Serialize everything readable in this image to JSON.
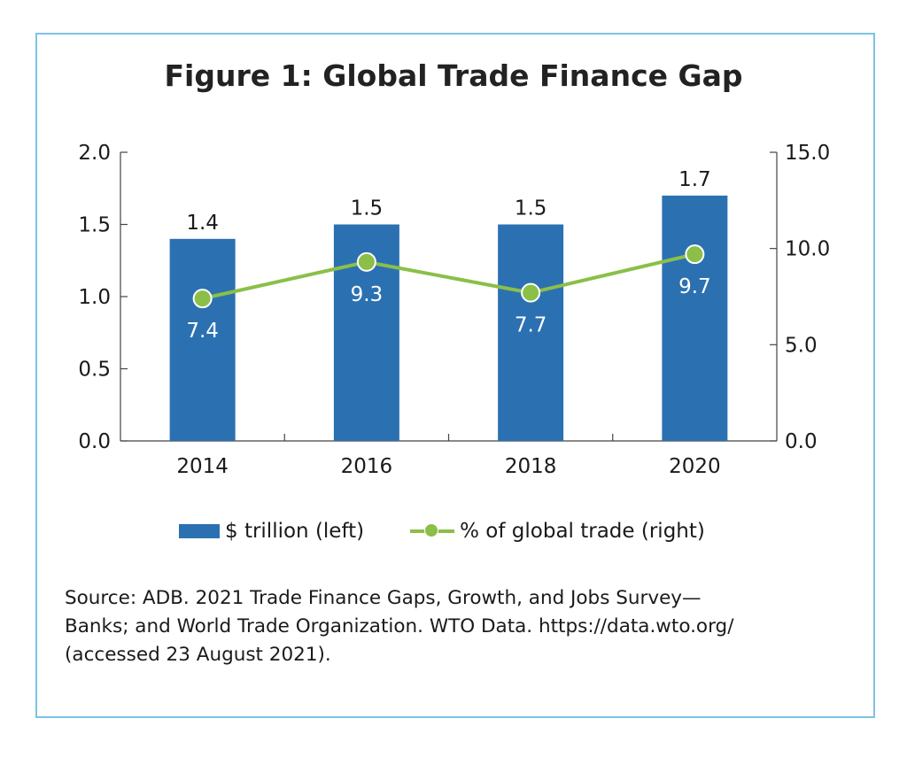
{
  "title": "Figure 1: Global Trade Finance Gap",
  "chart_data": {
    "type": "bar",
    "categories": [
      "2014",
      "2016",
      "2018",
      "2020"
    ],
    "series": [
      {
        "name": "$ trillion (left)",
        "type": "bar",
        "axis": "left",
        "values": [
          1.4,
          1.5,
          1.5,
          1.7
        ],
        "color": "#2b71b1"
      },
      {
        "name": "% of global trade (right)",
        "type": "line",
        "axis": "right",
        "values": [
          7.4,
          9.3,
          7.7,
          9.7
        ],
        "color": "#8bbf48"
      }
    ],
    "left_axis": {
      "min": 0,
      "max": 2.0,
      "ticks": [
        "0.0",
        "0.5",
        "1.0",
        "1.5",
        "2.0"
      ]
    },
    "right_axis": {
      "min": 0,
      "max": 15.0,
      "ticks": [
        "0.0",
        "5.0",
        "10.0",
        "15.0"
      ]
    },
    "bar_labels": [
      "1.4",
      "1.5",
      "1.5",
      "1.7"
    ],
    "line_labels": [
      "7.4",
      "9.3",
      "7.7",
      "9.7"
    ],
    "legend_position": "bottom",
    "grid": false
  },
  "legend": {
    "bar_label": "$ trillion (left)",
    "line_label": "% of global trade (right)"
  },
  "source_lines": [
    "Source: ADB. 2021 Trade Finance Gaps, Growth, and Jobs Survey—",
    "Banks; and World Trade Organization. WTO Data. https://data.wto.org/",
    "(accessed 23 August 2021)."
  ],
  "colors": {
    "frame": "#7cc3e6",
    "bar": "#2b71b1",
    "line": "#8bbf48"
  }
}
